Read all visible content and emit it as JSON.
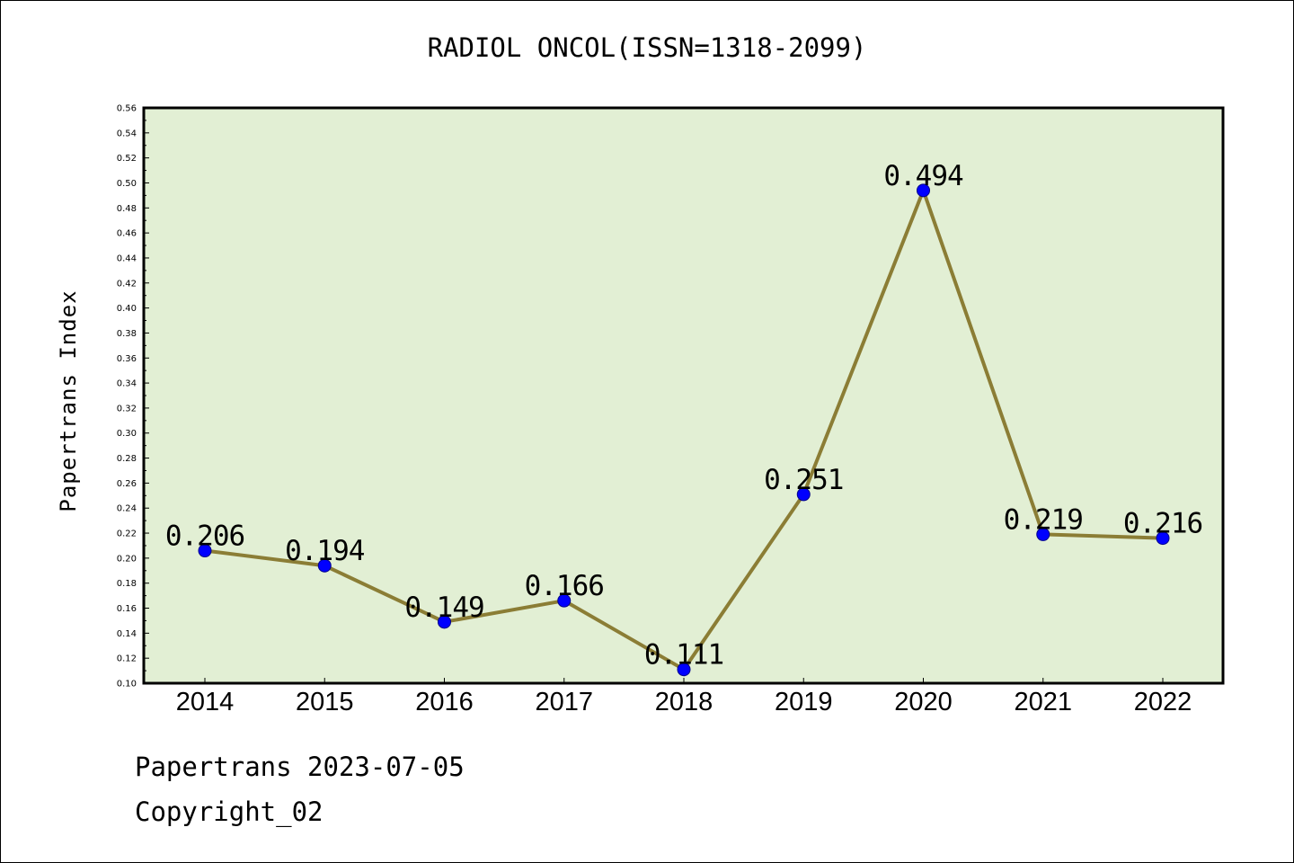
{
  "chart_data": {
    "type": "line",
    "title": "RADIOL ONCOL(ISSN=1318-2099)",
    "xlabel": "",
    "ylabel": "Papertrans Index",
    "categories": [
      "2014",
      "2015",
      "2016",
      "2017",
      "2018",
      "2019",
      "2020",
      "2021",
      "2022"
    ],
    "series": [
      {
        "values": [
          0.206,
          0.194,
          0.149,
          0.166,
          0.111,
          0.251,
          0.494,
          0.219,
          0.216
        ],
        "labels": [
          "0.206",
          "0.194",
          "0.149",
          "0.166",
          "0.111",
          "0.251",
          "0.494",
          "0.219",
          "0.216"
        ]
      }
    ],
    "ylim": [
      0.1,
      0.56
    ],
    "yticks": [
      "0.10",
      "0.12",
      "0.14",
      "0.16",
      "0.18",
      "0.20",
      "0.22",
      "0.24",
      "0.26",
      "0.28",
      "0.30",
      "0.32",
      "0.34",
      "0.36",
      "0.38",
      "0.40",
      "0.42",
      "0.44",
      "0.46",
      "0.48",
      "0.50",
      "0.52",
      "0.54",
      "0.56"
    ],
    "grid": false,
    "colors": {
      "plot_background": "#e2efd4",
      "line": "#8b7d35",
      "marker": "#0000ff"
    }
  },
  "footer": {
    "date_text": "Papertrans 2023-07-05",
    "copyright_text": "Copyright_02"
  }
}
